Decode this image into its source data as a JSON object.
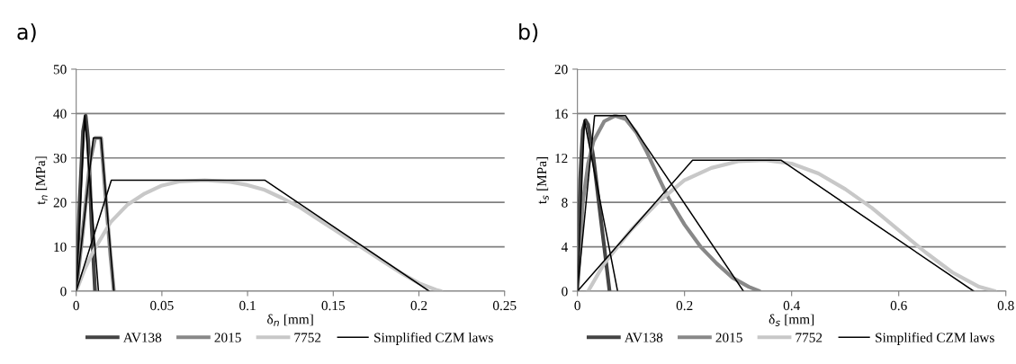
{
  "chart_data": [
    {
      "type": "line",
      "title": "a)",
      "xlabel": "δ$_{n}$ [mm]",
      "ylabel": "t$_{n}$ [MPa]",
      "xlim": [
        0,
        0.25
      ],
      "xticks": [
        0,
        0.05,
        0.1,
        0.15,
        0.2,
        0.25
      ],
      "ylim": [
        0,
        50
      ],
      "yticks": [
        0,
        10,
        20,
        30,
        40,
        50
      ],
      "grid": "y",
      "legend": "bottom",
      "marker": "none",
      "line_style": "solid",
      "series": [
        {
          "name": "AV138",
          "color": "#444444",
          "x": [
            0,
            0.002,
            0.004,
            0.0055,
            0.007,
            0.009,
            0.011
          ],
          "values": [
            0,
            20,
            36,
            39.5,
            34,
            15,
            0
          ]
        },
        {
          "name": "2015",
          "color": "#888888",
          "x": [
            0,
            0.004,
            0.008,
            0.011,
            0.0145,
            0.017,
            0.02,
            0.022
          ],
          "values": [
            0,
            14,
            29,
            34.5,
            34.5,
            22,
            8,
            0
          ]
        },
        {
          "name": "7752",
          "color": "#c8c8c8",
          "x": [
            0,
            0.005,
            0.01,
            0.02,
            0.03,
            0.04,
            0.05,
            0.06,
            0.075,
            0.09,
            0.1,
            0.11,
            0.12,
            0.13,
            0.14,
            0.15,
            0.16,
            0.17,
            0.18,
            0.19,
            0.2,
            0.21,
            0.213
          ],
          "values": [
            0,
            5,
            9,
            15.5,
            19.5,
            22,
            23.8,
            24.7,
            25,
            24.6,
            23.9,
            22.8,
            21,
            19,
            16.5,
            14,
            11.5,
            9,
            6.5,
            4,
            1.8,
            0.3,
            0
          ]
        },
        {
          "name": "Simplified CZM laws",
          "color": "#000000",
          "x": [
            0,
            0.005,
            0.013
          ],
          "values": [
            0,
            39.5,
            0
          ]
        },
        {
          "color": "#000000",
          "x": [
            0,
            0.01,
            0.0145,
            0.022
          ],
          "values": [
            0,
            34.5,
            34.5,
            0
          ]
        },
        {
          "color": "#000000",
          "x": [
            0,
            0.0205,
            0.11,
            0.206
          ],
          "values": [
            0,
            25,
            25,
            0
          ]
        }
      ]
    },
    {
      "type": "line",
      "title": "b)",
      "xlabel": "δ$_{s}$ [mm]",
      "ylabel": "t$_{s}$ [MPa]",
      "xlim": [
        0,
        0.8
      ],
      "xticks": [
        0,
        0.2,
        0.4,
        0.6,
        0.8
      ],
      "ylim": [
        0,
        20
      ],
      "yticks": [
        0,
        4,
        8,
        12,
        16,
        20
      ],
      "grid": "y",
      "legend": "bottom",
      "marker": "none",
      "line_style": "solid",
      "series": [
        {
          "name": "AV138",
          "color": "#444444",
          "x": [
            0,
            0.005,
            0.01,
            0.015,
            0.02,
            0.03,
            0.04,
            0.05,
            0.06
          ],
          "values": [
            0,
            10,
            14.5,
            15.4,
            15,
            12,
            8,
            4,
            0
          ]
        },
        {
          "name": "2015",
          "color": "#888888",
          "x": [
            0,
            0.01,
            0.02,
            0.03,
            0.05,
            0.07,
            0.09,
            0.11,
            0.13,
            0.15,
            0.17,
            0.2,
            0.23,
            0.26,
            0.29,
            0.32,
            0.34
          ],
          "values": [
            0,
            8,
            11.5,
            13.5,
            15.3,
            15.8,
            15.5,
            14.3,
            12.5,
            10.4,
            8.4,
            6,
            4,
            2.5,
            1.2,
            0.4,
            0
          ]
        },
        {
          "name": "7752",
          "color": "#c8c8c8",
          "x": [
            0.02,
            0.05,
            0.1,
            0.15,
            0.2,
            0.25,
            0.3,
            0.35,
            0.4,
            0.45,
            0.5,
            0.55,
            0.6,
            0.65,
            0.7,
            0.75,
            0.78
          ],
          "values": [
            0,
            2.5,
            5.5,
            8,
            10,
            11.1,
            11.7,
            11.8,
            11.5,
            10.6,
            9.2,
            7.5,
            5.5,
            3.5,
            1.7,
            0.4,
            0
          ]
        },
        {
          "name": "Simplified CZM laws",
          "color": "#000000",
          "x": [
            0,
            0.013,
            0.075
          ],
          "values": [
            0,
            15.4,
            0
          ]
        },
        {
          "color": "#000000",
          "x": [
            0,
            0.032,
            0.09,
            0.31
          ],
          "values": [
            0,
            15.8,
            15.8,
            0
          ]
        },
        {
          "color": "#000000",
          "x": [
            0,
            0.215,
            0.38,
            0.74
          ],
          "values": [
            0,
            11.8,
            11.8,
            0
          ]
        }
      ]
    }
  ]
}
